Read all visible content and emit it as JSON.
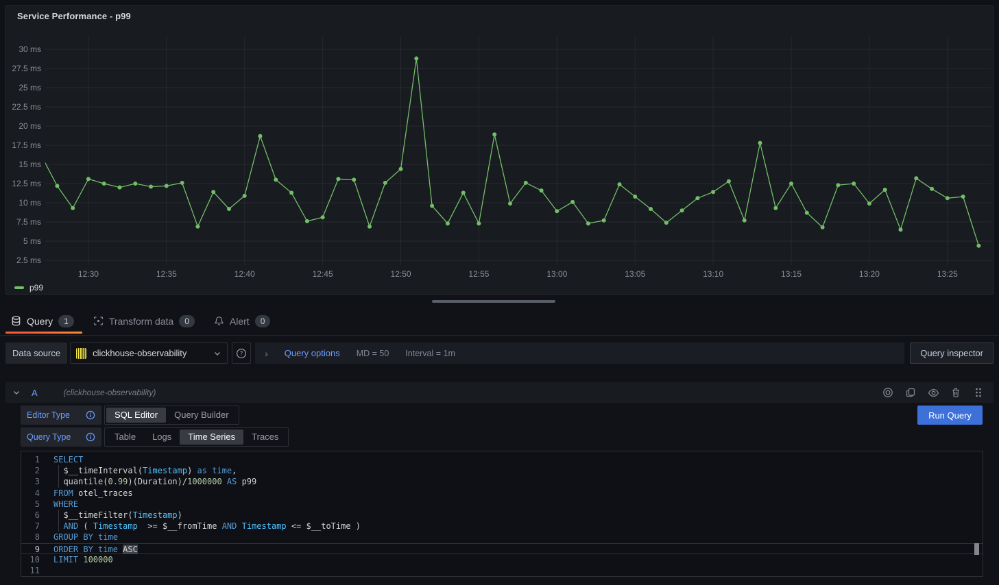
{
  "panel": {
    "title": "Service Performance - p99"
  },
  "chart_data": {
    "type": "line",
    "title": "Service Performance - p99",
    "legend_position": "bottom-left",
    "grid": true,
    "x_start": "12:27",
    "x_interval": "1m",
    "ylim": [
      1.875,
      31.7
    ],
    "series": [
      {
        "name": "p99",
        "color": "#73BF69",
        "unit": "ms",
        "values": [
          16.1,
          12.2,
          9.3,
          13.1,
          12.5,
          12.0,
          12.5,
          12.1,
          12.2,
          12.6,
          6.9,
          11.4,
          9.2,
          10.9,
          18.7,
          13.0,
          11.3,
          7.6,
          8.1,
          13.1,
          13.0,
          6.9,
          12.6,
          14.4,
          28.8,
          9.6,
          7.3,
          11.3,
          7.3,
          18.9,
          9.9,
          12.6,
          11.6,
          8.9,
          10.1,
          7.3,
          7.7,
          12.4,
          10.8,
          9.2,
          7.4,
          9.0,
          10.6,
          11.4,
          12.8,
          7.7,
          17.8,
          9.3,
          12.5,
          8.7,
          6.8,
          12.3,
          12.5,
          9.9,
          11.7,
          6.5,
          13.2,
          11.8,
          10.6,
          10.8,
          4.4
        ]
      }
    ],
    "x_ticks": [
      {
        "label": "12:30",
        "m": 3
      },
      {
        "label": "12:35",
        "m": 8
      },
      {
        "label": "12:40",
        "m": 13
      },
      {
        "label": "12:45",
        "m": 18
      },
      {
        "label": "12:50",
        "m": 23
      },
      {
        "label": "12:55",
        "m": 28
      },
      {
        "label": "13:00",
        "m": 33
      },
      {
        "label": "13:05",
        "m": 38
      },
      {
        "label": "13:10",
        "m": 43
      },
      {
        "label": "13:15",
        "m": 48
      },
      {
        "label": "13:20",
        "m": 53
      },
      {
        "label": "13:25",
        "m": 58
      }
    ],
    "y_ticks": [
      {
        "label": "30 ms",
        "v": 30
      },
      {
        "label": "27.5 ms",
        "v": 27.5
      },
      {
        "label": "25 ms",
        "v": 25
      },
      {
        "label": "22.5 ms",
        "v": 22.5
      },
      {
        "label": "20 ms",
        "v": 20
      },
      {
        "label": "17.5 ms",
        "v": 17.5
      },
      {
        "label": "15 ms",
        "v": 15
      },
      {
        "label": "12.5 ms",
        "v": 12.5
      },
      {
        "label": "10 ms",
        "v": 10
      },
      {
        "label": "7.5 ms",
        "v": 7.5
      },
      {
        "label": "5 ms",
        "v": 5
      },
      {
        "label": "2.5 ms",
        "v": 2.5
      }
    ]
  },
  "tabs": [
    {
      "label": "Query",
      "count": "1",
      "icon": "database-icon",
      "active": true
    },
    {
      "label": "Transform data",
      "count": "0",
      "icon": "process-icon",
      "active": false
    },
    {
      "label": "Alert",
      "count": "0",
      "icon": "bell-icon",
      "active": false
    }
  ],
  "toolbar": {
    "datasource_label": "Data source",
    "datasource_value": "clickhouse-observability",
    "query_options_label": "Query options",
    "max_data_points": "MD = 50",
    "interval": "Interval = 1m",
    "inspector_label": "Query inspector"
  },
  "query_row": {
    "ref_id": "A",
    "datasource_hint": "(clickhouse-observability)"
  },
  "editor": {
    "editor_type_label": "Editor Type",
    "editor_type_options": [
      "SQL Editor",
      "Query Builder"
    ],
    "editor_type_selected": 0,
    "query_type_label": "Query Type",
    "query_type_options": [
      "Table",
      "Logs",
      "Time Series",
      "Traces"
    ],
    "query_type_selected": 2,
    "run_button": "Run Query",
    "code": {
      "current_line": 9,
      "lines": [
        {
          "g": false,
          "t": [
            [
              "k",
              "SELECT"
            ]
          ]
        },
        {
          "g": true,
          "t": [
            [
              "p",
              "  $__timeInterval("
            ],
            [
              "ty",
              "Timestamp"
            ],
            [
              "p",
              ") "
            ],
            [
              "k",
              "as"
            ],
            [
              "p",
              " "
            ],
            [
              "k",
              "time"
            ],
            [
              "p",
              ","
            ]
          ]
        },
        {
          "g": true,
          "t": [
            [
              "p",
              "  quantile("
            ],
            [
              "n",
              "0.99"
            ],
            [
              "p",
              ")(Duration)/"
            ],
            [
              "n",
              "1000000"
            ],
            [
              "p",
              " "
            ],
            [
              "k",
              "AS"
            ],
            [
              "p",
              " p99"
            ]
          ]
        },
        {
          "g": false,
          "t": [
            [
              "k",
              "FROM"
            ],
            [
              "p",
              " otel_traces"
            ]
          ]
        },
        {
          "g": false,
          "t": [
            [
              "k",
              "WHERE"
            ]
          ]
        },
        {
          "g": true,
          "t": [
            [
              "p",
              "  $__timeFilter("
            ],
            [
              "ty",
              "Timestamp"
            ],
            [
              "p",
              ")"
            ]
          ]
        },
        {
          "g": true,
          "t": [
            [
              "p",
              "  "
            ],
            [
              "k",
              "AND"
            ],
            [
              "p",
              " ( "
            ],
            [
              "ty",
              "Timestamp"
            ],
            [
              "p",
              "  >= $__fromTime "
            ],
            [
              "k",
              "AND"
            ],
            [
              "p",
              " "
            ],
            [
              "ty",
              "Timestamp"
            ],
            [
              "p",
              " <= $__toTime )"
            ]
          ]
        },
        {
          "g": false,
          "t": [
            [
              "k",
              "GROUP BY"
            ],
            [
              "p",
              " "
            ],
            [
              "k",
              "time"
            ]
          ]
        },
        {
          "g": false,
          "t": [
            [
              "k",
              "ORDER BY"
            ],
            [
              "p",
              " "
            ],
            [
              "k",
              "time"
            ],
            [
              "p",
              " "
            ],
            [
              "s",
              "ASC"
            ]
          ]
        },
        {
          "g": false,
          "t": [
            [
              "k",
              "LIMIT"
            ],
            [
              "p",
              " "
            ],
            [
              "n",
              "100000"
            ]
          ]
        },
        {
          "g": false,
          "t": []
        }
      ]
    }
  },
  "colors": {
    "series_green": "#73BF69",
    "accent_blue": "#6E9FFF",
    "run_button_blue": "#3D71D9",
    "tab_underline_from": "#F55F3E",
    "tab_underline_to": "#FF8833",
    "clickhouse_yellow": "#F5E942",
    "panel_bg": "#181B1F",
    "page_bg": "#111217"
  }
}
